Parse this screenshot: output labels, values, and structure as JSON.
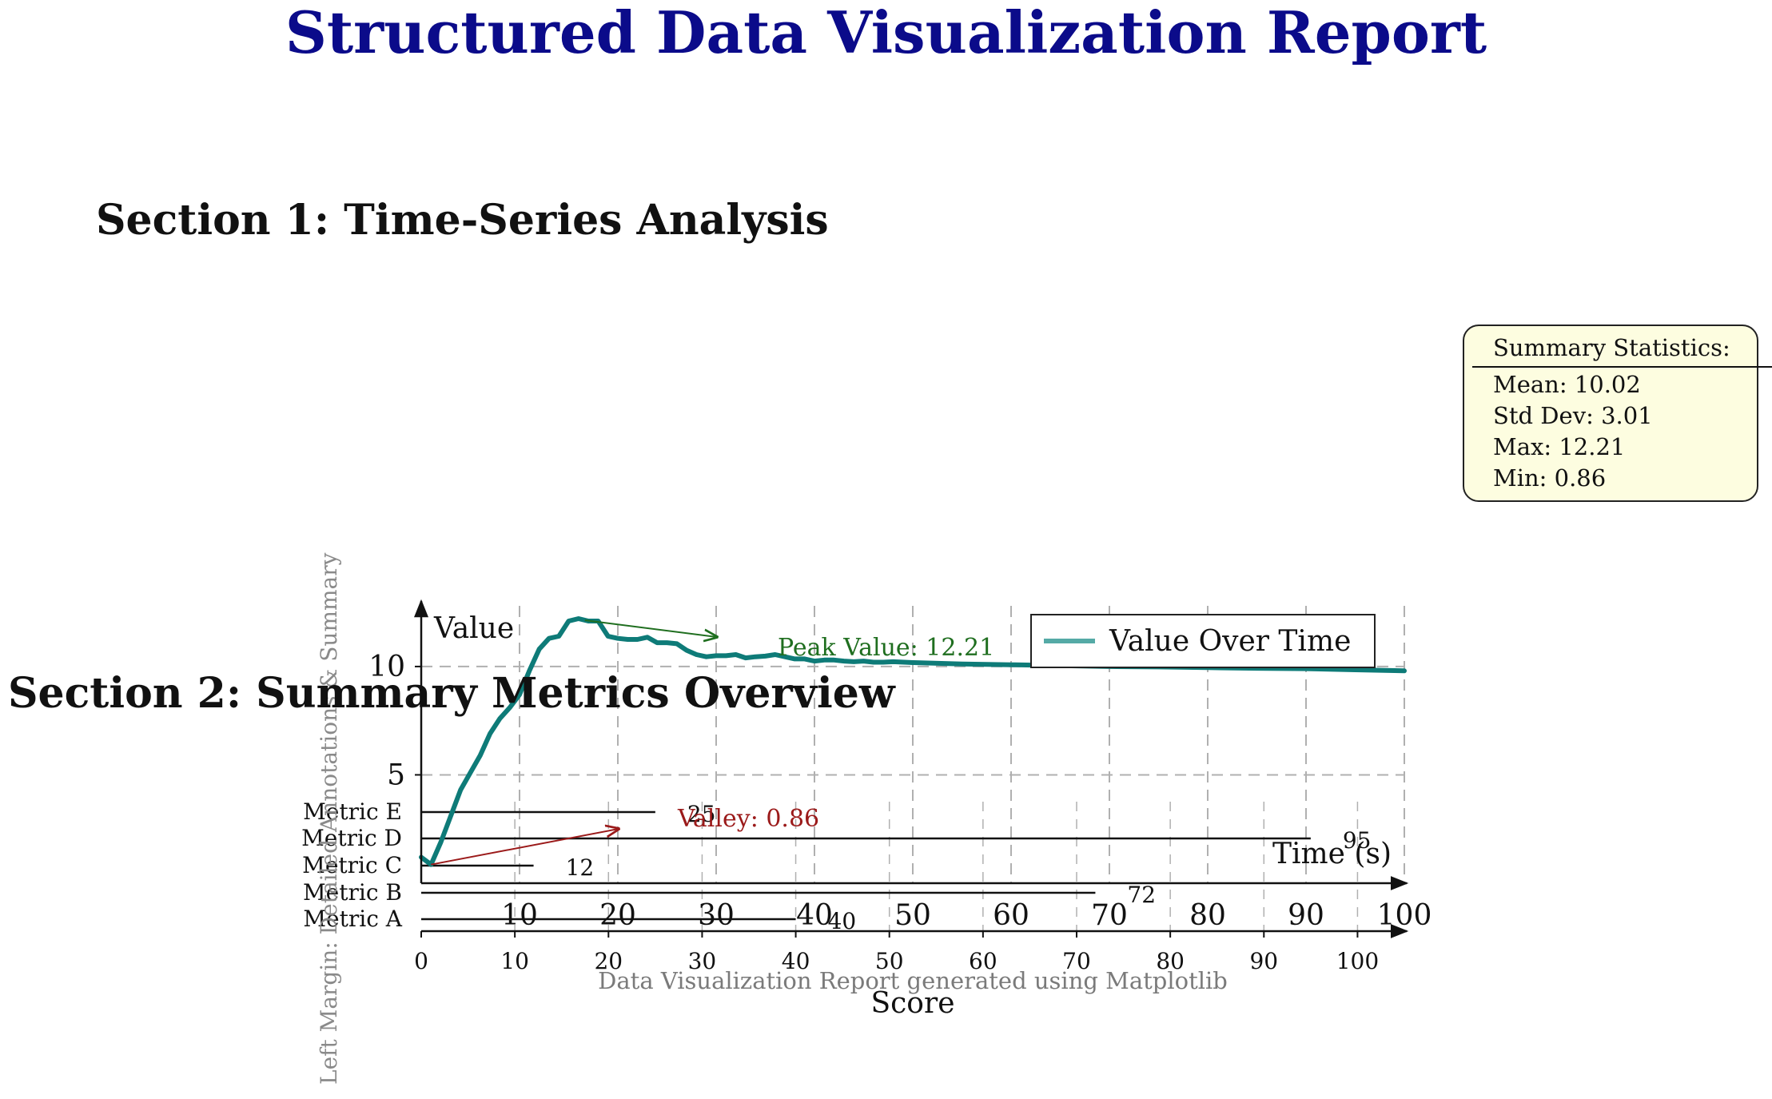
{
  "report": {
    "title": "Structured Data Visualization Report",
    "section1_heading": "Section 1: Time-Series Analysis",
    "section2_heading": "Section 2: Summary Metrics Overview",
    "footer_note": "Data Visualization Report generated using Matplotlib",
    "margin_note": "Left Margin: Detailed Annotations & Summary"
  },
  "summary_stats": {
    "header": "Summary Statistics:",
    "mean": "Mean: 10.02",
    "std_dev": "Std Dev: 3.01",
    "max": "Max: 12.21",
    "min": "Min: 0.86"
  },
  "colors": {
    "title": "#0b0b8a",
    "line": "#0e7b78",
    "legend_line": "#55aaa6",
    "peak": "#1f6e1f",
    "valley": "#9b1a1a",
    "grid": "#b0b0b0",
    "box_fill": "#fdfde0"
  },
  "chart_data": [
    {
      "type": "line",
      "title": "",
      "xlabel": "Time (s)",
      "ylabel": "Value",
      "xlim": [
        0,
        100
      ],
      "ylim": [
        0,
        12.8
      ],
      "x_ticks": [
        10,
        20,
        30,
        40,
        50,
        60,
        70,
        80,
        90,
        100
      ],
      "y_ticks": [
        5,
        10
      ],
      "grid": true,
      "legend": {
        "placement": "top-right",
        "entries": [
          "Value Over Time"
        ]
      },
      "series": [
        {
          "name": "Value Over Time",
          "x": [
            0,
            1,
            2,
            3,
            4,
            5,
            6,
            7,
            8,
            9,
            10,
            11,
            12,
            13,
            14,
            15,
            16,
            17,
            18,
            19,
            20,
            21,
            22,
            23,
            24,
            25,
            26,
            27,
            28,
            29,
            30,
            31,
            32,
            33,
            34,
            35,
            36,
            37,
            38,
            39,
            40,
            41,
            42,
            43,
            44,
            45,
            46,
            47,
            48,
            50,
            55,
            60,
            65,
            70,
            75,
            80,
            85,
            90,
            95,
            100
          ],
          "y": [
            1.2,
            0.86,
            1.9,
            3.1,
            4.3,
            5.1,
            5.9,
            6.9,
            7.6,
            8.1,
            8.7,
            9.8,
            10.8,
            11.3,
            11.4,
            12.1,
            12.21,
            12.1,
            12.1,
            11.4,
            11.3,
            11.25,
            11.25,
            11.35,
            11.1,
            11.1,
            11.05,
            10.75,
            10.55,
            10.45,
            10.5,
            10.5,
            10.55,
            10.4,
            10.45,
            10.48,
            10.55,
            10.45,
            10.35,
            10.35,
            10.25,
            10.3,
            10.3,
            10.25,
            10.22,
            10.25,
            10.2,
            10.2,
            10.22,
            10.18,
            10.12,
            10.08,
            10.04,
            10.0,
            9.98,
            9.95,
            9.92,
            9.9,
            9.85,
            9.8
          ]
        }
      ],
      "annotations": [
        {
          "text": "Peak Value: 12.21",
          "x": 16,
          "y": 12.21
        },
        {
          "text": "Valley: 0.86",
          "x": 1,
          "y": 0.86
        }
      ]
    },
    {
      "type": "bar",
      "orientation": "horizontal",
      "title": "",
      "xlabel": "Score",
      "ylabel": "",
      "xlim": [
        0,
        105
      ],
      "x_ticks": [
        0,
        10,
        20,
        30,
        40,
        50,
        60,
        70,
        80,
        90,
        100
      ],
      "grid": true,
      "categories": [
        "Metric A",
        "Metric B",
        "Metric C",
        "Metric D",
        "Metric E"
      ],
      "values": [
        40,
        72,
        12,
        95,
        25
      ],
      "data_labels": [
        "40",
        "72",
        "12",
        "95",
        "25"
      ]
    }
  ]
}
